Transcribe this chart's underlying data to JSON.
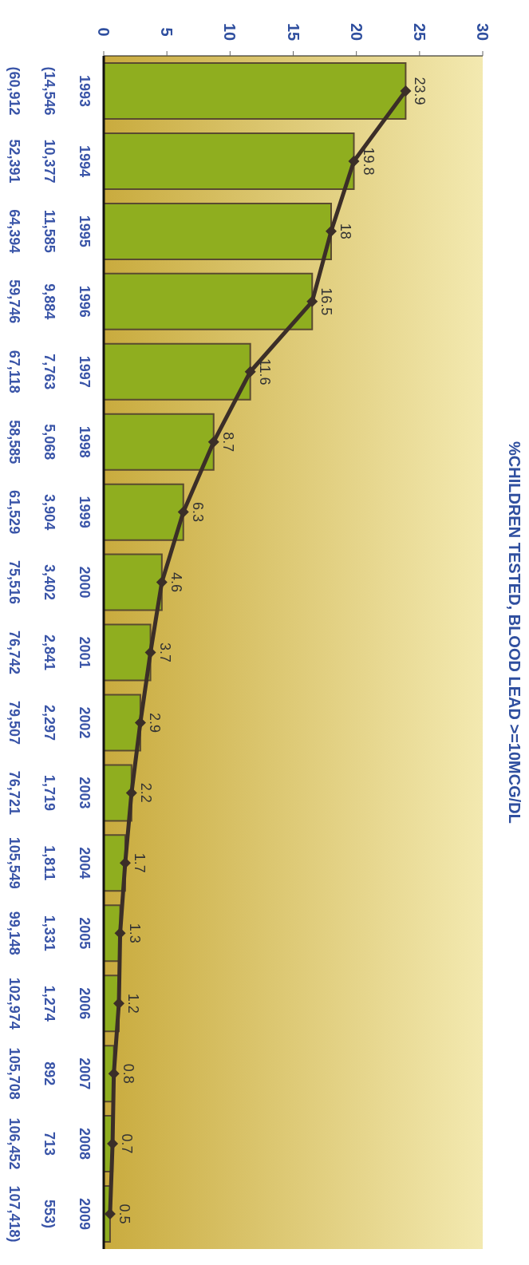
{
  "chart_data": {
    "type": "bar",
    "title": "%CHILDREN TESTED, BLOOD LEAD >=10MCG/DL",
    "categories": [
      "1993\n(14,546\n(60,912",
      "1994\n10,377\n52,391",
      "1995\n11,585\n64,394",
      "1996\n9,884\n59,746",
      "1997\n7,763\n67,118",
      "1998\n5,068\n58,585",
      "1999\n3,904\n61,529",
      "2000\n3,402\n75,516",
      "2001\n2,841\n76,742",
      "2002\n2,297\n79,507",
      "2003\n1,719\n76,721",
      "2004\n1,811\n105,549",
      "2005\n1,331\n99,148",
      "2006\n1,274\n102,974",
      "2007\n892\n105,708",
      "2008\n713\n106,452",
      "2009\n553)\n107,418)"
    ],
    "series": [
      {
        "color": "#8fae1f",
        "values": [
          23.9,
          19.8,
          18,
          16.5,
          11.6,
          8.7,
          6.3,
          4.6,
          3.7,
          2.9,
          2.2,
          1.7,
          1.3,
          1.2,
          0.8,
          0.7,
          0.5
        ]
      },
      {
        "type": "line",
        "color": "#3b2e28",
        "values": [
          23.9,
          19.8,
          18,
          16.5,
          11.6,
          8.7,
          6.3,
          4.6,
          3.7,
          2.9,
          2.2,
          1.7,
          1.3,
          1.2,
          0.8,
          0.7,
          0.5
        ],
        "value_labels": [
          "23.9",
          "19.8",
          "18",
          "16.5",
          "11.6",
          "8.7",
          "6.3",
          "4.6",
          "3.7",
          "2.9",
          "2.2",
          "1.7",
          "1.3",
          "1.2",
          "0.8",
          "0.7",
          "0.5"
        ]
      }
    ],
    "orientation": "horizontal",
    "xlim": [
      0,
      30
    ],
    "xticks": [
      0,
      5,
      10,
      15,
      20,
      25,
      30
    ],
    "marker": "diamond",
    "grid": false,
    "legend": false
  }
}
